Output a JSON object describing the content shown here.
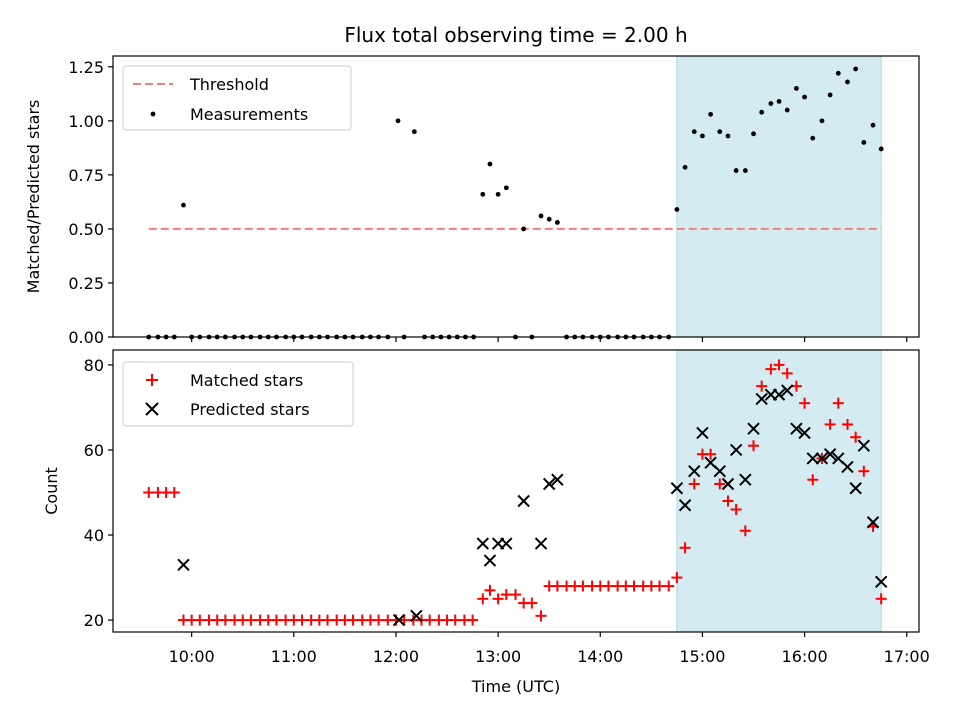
{
  "chart_data": {
    "title": "Flux total observing time = 2.00 h",
    "x_tick_labels": [
      "10:00",
      "11:00",
      "12:00",
      "13:00",
      "14:00",
      "15:00",
      "16:00",
      "17:00"
    ],
    "x_tick_hours": [
      10,
      11,
      12,
      13,
      14,
      15,
      16,
      17
    ],
    "xlim_hours": [
      9.23,
      17.12
    ],
    "xlabel": "Time (UTC)",
    "highlight_span_hours": [
      14.75,
      16.75
    ],
    "highlight_color": "#d4ebf2",
    "top": {
      "type": "scatter",
      "ylabel": "Matched/Predicted stars",
      "ylim": [
        0,
        1.3
      ],
      "y_ticks": [
        0.0,
        0.25,
        0.5,
        0.75,
        1.0,
        1.25
      ],
      "y_tick_labels": [
        "0.00",
        "0.25",
        "0.50",
        "0.75",
        "1.00",
        "1.25"
      ],
      "threshold": {
        "name": "Threshold",
        "value": 0.5,
        "x_range": [
          9.58,
          16.75
        ],
        "color": "#f08080"
      },
      "legend": [
        "Threshold",
        "Measurements"
      ],
      "measurements": {
        "name": "Measurements",
        "color": "#000000",
        "points": [
          [
            9.58,
            0
          ],
          [
            9.67,
            0
          ],
          [
            9.75,
            0
          ],
          [
            9.83,
            0
          ],
          [
            9.92,
            0.61
          ],
          [
            10.0,
            0
          ],
          [
            10.08,
            0
          ],
          [
            10.17,
            0
          ],
          [
            10.25,
            0
          ],
          [
            10.33,
            0
          ],
          [
            10.42,
            0
          ],
          [
            10.5,
            0
          ],
          [
            10.58,
            0
          ],
          [
            10.67,
            0
          ],
          [
            10.75,
            0
          ],
          [
            10.83,
            0
          ],
          [
            10.92,
            0
          ],
          [
            11.0,
            0
          ],
          [
            11.08,
            0
          ],
          [
            11.17,
            0
          ],
          [
            11.25,
            0
          ],
          [
            11.33,
            0
          ],
          [
            11.42,
            0
          ],
          [
            11.5,
            0
          ],
          [
            11.58,
            0
          ],
          [
            11.67,
            0
          ],
          [
            11.75,
            0
          ],
          [
            11.83,
            0
          ],
          [
            11.92,
            0
          ],
          [
            12.02,
            1.0
          ],
          [
            12.08,
            0
          ],
          [
            12.18,
            0.95
          ],
          [
            12.28,
            0
          ],
          [
            12.36,
            0
          ],
          [
            12.44,
            0
          ],
          [
            12.52,
            0
          ],
          [
            12.6,
            0
          ],
          [
            12.68,
            0
          ],
          [
            12.76,
            0
          ],
          [
            12.85,
            0.66
          ],
          [
            12.92,
            0.8
          ],
          [
            13.0,
            0.66
          ],
          [
            13.08,
            0.69
          ],
          [
            13.17,
            0
          ],
          [
            13.25,
            0.5
          ],
          [
            13.33,
            0
          ],
          [
            13.42,
            0.56
          ],
          [
            13.5,
            0.545
          ],
          [
            13.58,
            0.53
          ],
          [
            13.67,
            0
          ],
          [
            13.75,
            0
          ],
          [
            13.83,
            0
          ],
          [
            13.92,
            0
          ],
          [
            14.0,
            0
          ],
          [
            14.08,
            0
          ],
          [
            14.17,
            0
          ],
          [
            14.25,
            0
          ],
          [
            14.33,
            0
          ],
          [
            14.42,
            0
          ],
          [
            14.5,
            0
          ],
          [
            14.58,
            0
          ],
          [
            14.67,
            0
          ],
          [
            14.75,
            0.59
          ],
          [
            14.83,
            0.785
          ],
          [
            14.92,
            0.95
          ],
          [
            15.0,
            0.93
          ],
          [
            15.08,
            1.03
          ],
          [
            15.17,
            0.95
          ],
          [
            15.25,
            0.93
          ],
          [
            15.33,
            0.77
          ],
          [
            15.42,
            0.77
          ],
          [
            15.5,
            0.94
          ],
          [
            15.58,
            1.04
          ],
          [
            15.67,
            1.08
          ],
          [
            15.75,
            1.09
          ],
          [
            15.83,
            1.05
          ],
          [
            15.92,
            1.15
          ],
          [
            16.0,
            1.11
          ],
          [
            16.08,
            0.92
          ],
          [
            16.17,
            1.0
          ],
          [
            16.25,
            1.12
          ],
          [
            16.33,
            1.22
          ],
          [
            16.42,
            1.18
          ],
          [
            16.5,
            1.24
          ],
          [
            16.58,
            0.9
          ],
          [
            16.67,
            0.98
          ],
          [
            16.75,
            0.87
          ]
        ]
      }
    },
    "bottom": {
      "type": "scatter",
      "ylabel": "Count",
      "ylim": [
        17.2,
        83.5
      ],
      "y_ticks": [
        20,
        40,
        60,
        80
      ],
      "y_tick_labels": [
        "20",
        "40",
        "60",
        "80"
      ],
      "legend": [
        "Matched stars",
        "Predicted stars"
      ],
      "matched": {
        "name": "Matched stars",
        "color": "#ff0000",
        "marker": "plus",
        "points": [
          [
            9.58,
            50
          ],
          [
            9.67,
            50
          ],
          [
            9.75,
            50
          ],
          [
            9.83,
            50
          ],
          [
            9.92,
            20
          ],
          [
            10.0,
            20
          ],
          [
            10.08,
            20
          ],
          [
            10.17,
            20
          ],
          [
            10.25,
            20
          ],
          [
            10.33,
            20
          ],
          [
            10.42,
            20
          ],
          [
            10.5,
            20
          ],
          [
            10.58,
            20
          ],
          [
            10.67,
            20
          ],
          [
            10.75,
            20
          ],
          [
            10.83,
            20
          ],
          [
            10.92,
            20
          ],
          [
            11.0,
            20
          ],
          [
            11.08,
            20
          ],
          [
            11.17,
            20
          ],
          [
            11.25,
            20
          ],
          [
            11.33,
            20
          ],
          [
            11.42,
            20
          ],
          [
            11.5,
            20
          ],
          [
            11.58,
            20
          ],
          [
            11.67,
            20
          ],
          [
            11.75,
            20
          ],
          [
            11.83,
            20
          ],
          [
            11.92,
            20
          ],
          [
            12.0,
            20
          ],
          [
            12.08,
            20
          ],
          [
            12.17,
            20
          ],
          [
            12.25,
            20
          ],
          [
            12.33,
            20
          ],
          [
            12.42,
            20
          ],
          [
            12.5,
            20
          ],
          [
            12.58,
            20
          ],
          [
            12.67,
            20
          ],
          [
            12.75,
            20
          ],
          [
            12.85,
            25
          ],
          [
            12.92,
            27
          ],
          [
            13.0,
            25
          ],
          [
            13.08,
            26
          ],
          [
            13.17,
            26
          ],
          [
            13.25,
            24
          ],
          [
            13.33,
            24
          ],
          [
            13.42,
            21
          ],
          [
            13.5,
            28
          ],
          [
            13.58,
            28
          ],
          [
            13.67,
            28
          ],
          [
            13.75,
            28
          ],
          [
            13.83,
            28
          ],
          [
            13.92,
            28
          ],
          [
            14.0,
            28
          ],
          [
            14.08,
            28
          ],
          [
            14.17,
            28
          ],
          [
            14.25,
            28
          ],
          [
            14.33,
            28
          ],
          [
            14.42,
            28
          ],
          [
            14.5,
            28
          ],
          [
            14.58,
            28
          ],
          [
            14.67,
            28
          ],
          [
            14.75,
            30
          ],
          [
            14.83,
            37
          ],
          [
            14.92,
            52
          ],
          [
            15.0,
            59
          ],
          [
            15.08,
            59
          ],
          [
            15.17,
            52
          ],
          [
            15.25,
            48
          ],
          [
            15.33,
            46
          ],
          [
            15.42,
            41
          ],
          [
            15.5,
            61
          ],
          [
            15.58,
            75
          ],
          [
            15.67,
            79
          ],
          [
            15.75,
            80
          ],
          [
            15.83,
            78
          ],
          [
            15.92,
            75
          ],
          [
            16.0,
            71
          ],
          [
            16.08,
            53
          ],
          [
            16.17,
            58
          ],
          [
            16.25,
            66
          ],
          [
            16.33,
            71
          ],
          [
            16.42,
            66
          ],
          [
            16.5,
            63
          ],
          [
            16.58,
            55
          ],
          [
            16.67,
            42
          ],
          [
            16.75,
            25
          ]
        ]
      },
      "predicted": {
        "name": "Predicted stars",
        "color": "#000000",
        "marker": "x",
        "points": [
          [
            9.92,
            33
          ],
          [
            12.03,
            20
          ],
          [
            12.2,
            21
          ],
          [
            12.85,
            38
          ],
          [
            12.92,
            34
          ],
          [
            13.0,
            38
          ],
          [
            13.08,
            38
          ],
          [
            13.25,
            48
          ],
          [
            13.42,
            38
          ],
          [
            13.5,
            52
          ],
          [
            13.58,
            53
          ],
          [
            14.75,
            51
          ],
          [
            14.83,
            47
          ],
          [
            14.92,
            55
          ],
          [
            15.0,
            64
          ],
          [
            15.08,
            57
          ],
          [
            15.17,
            55
          ],
          [
            15.25,
            52
          ],
          [
            15.33,
            60
          ],
          [
            15.42,
            53
          ],
          [
            15.5,
            65
          ],
          [
            15.58,
            72
          ],
          [
            15.67,
            73
          ],
          [
            15.75,
            73
          ],
          [
            15.83,
            74
          ],
          [
            15.92,
            65
          ],
          [
            16.0,
            64
          ],
          [
            16.08,
            58
          ],
          [
            16.17,
            58
          ],
          [
            16.25,
            59
          ],
          [
            16.33,
            58
          ],
          [
            16.42,
            56
          ],
          [
            16.5,
            51
          ],
          [
            16.58,
            61
          ],
          [
            16.67,
            43
          ],
          [
            16.75,
            29
          ]
        ]
      }
    }
  }
}
